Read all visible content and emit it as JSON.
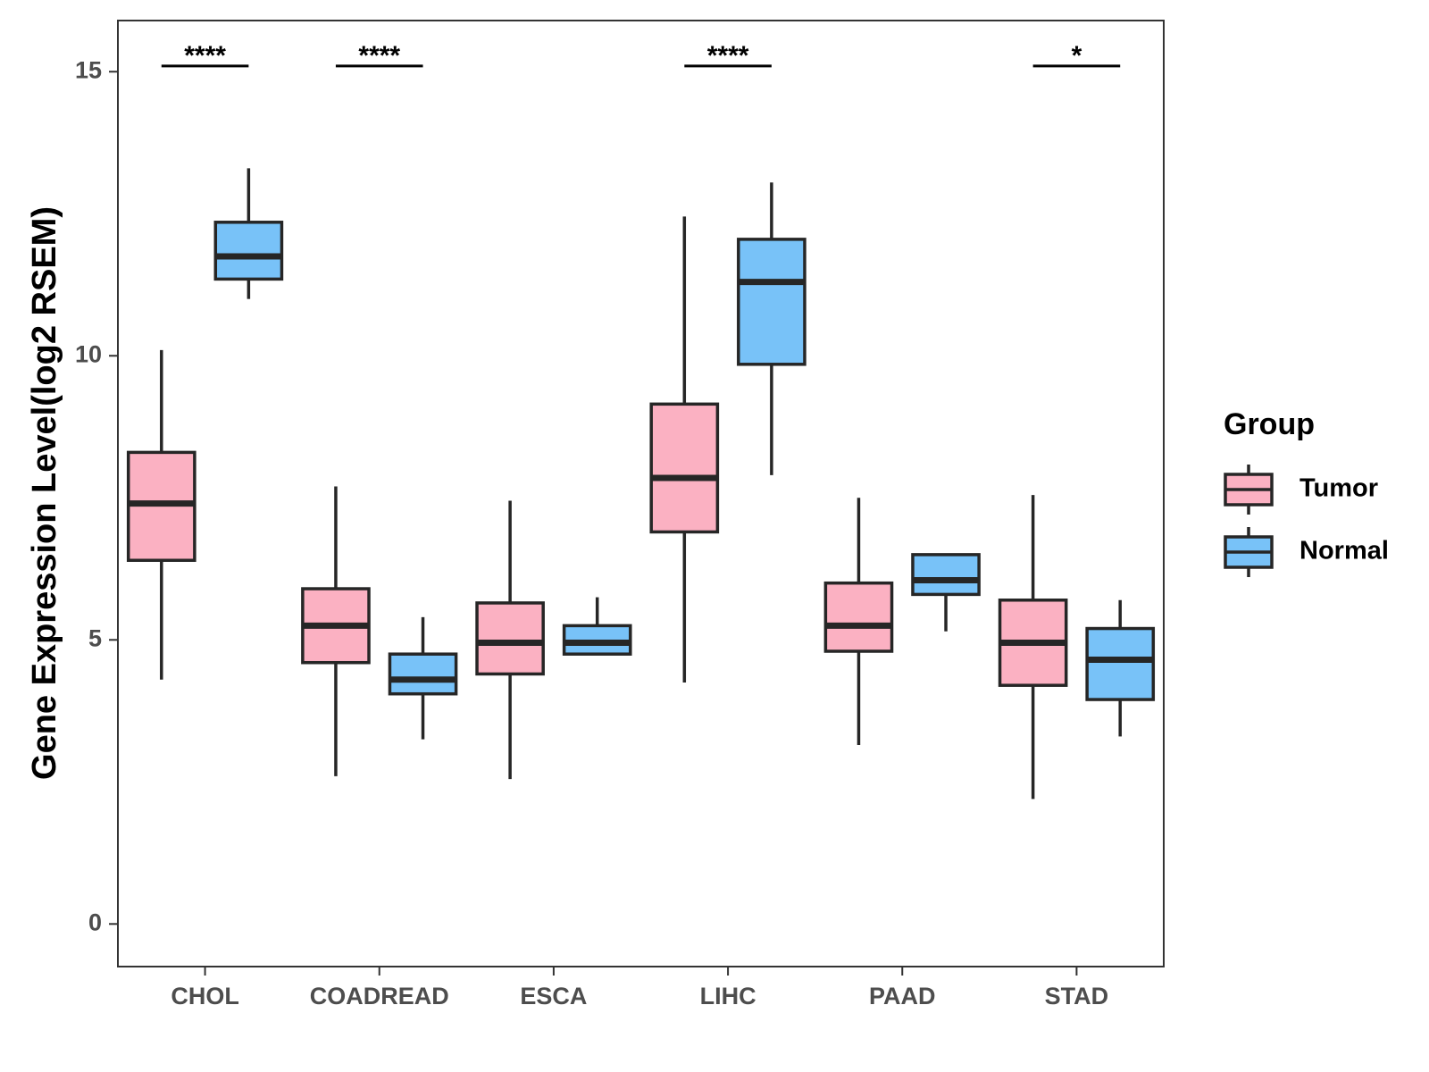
{
  "chart_data": {
    "type": "boxplot",
    "title": "",
    "xlabel": "",
    "ylabel": "Gene Expression Level(log2 RSEM)",
    "ylim": [
      -0.75,
      15.9
    ],
    "yticks": [
      0,
      5,
      10,
      15
    ],
    "ytick_labels": [
      "0",
      "5",
      "10",
      "15"
    ],
    "grid": false,
    "categories": [
      "CHOL",
      "COADREAD",
      "ESCA",
      "LIHC",
      "PAAD",
      "STAD"
    ],
    "legend": {
      "title": "Group",
      "position": "right",
      "entries": [
        "Tumor",
        "Normal"
      ]
    },
    "series": [
      {
        "name": "Tumor",
        "color": "#FBB1C2",
        "boxes": [
          {
            "min": 4.3,
            "q1": 6.4,
            "median": 7.4,
            "q3": 8.3,
            "max": 10.1
          },
          {
            "min": 2.6,
            "q1": 4.6,
            "median": 5.25,
            "q3": 5.9,
            "max": 7.7
          },
          {
            "min": 2.55,
            "q1": 4.4,
            "median": 4.95,
            "q3": 5.65,
            "max": 7.45
          },
          {
            "min": 4.25,
            "q1": 6.9,
            "median": 7.85,
            "q3": 9.15,
            "max": 12.45
          },
          {
            "min": 3.15,
            "q1": 4.8,
            "median": 5.25,
            "q3": 6.0,
            "max": 7.5
          },
          {
            "min": 2.2,
            "q1": 4.2,
            "median": 4.95,
            "q3": 5.7,
            "max": 7.55
          }
        ]
      },
      {
        "name": "Normal",
        "color": "#78C2F8",
        "boxes": [
          {
            "min": 11.0,
            "q1": 11.35,
            "median": 11.75,
            "q3": 12.35,
            "max": 13.3
          },
          {
            "min": 3.25,
            "q1": 4.05,
            "median": 4.3,
            "q3": 4.75,
            "max": 5.4
          },
          {
            "min": 4.75,
            "q1": 4.75,
            "median": 4.95,
            "q3": 5.25,
            "max": 5.75
          },
          {
            "min": 7.9,
            "q1": 9.85,
            "median": 11.3,
            "q3": 12.05,
            "max": 13.05
          },
          {
            "min": 5.15,
            "q1": 5.8,
            "median": 6.05,
            "q3": 6.5,
            "max": 6.5
          },
          {
            "min": 3.3,
            "q1": 3.95,
            "median": 4.65,
            "q3": 5.2,
            "max": 5.7
          }
        ]
      }
    ],
    "significance": [
      {
        "category": "CHOL",
        "label": "****"
      },
      {
        "category": "COADREAD",
        "label": "****"
      },
      {
        "category": "LIHC",
        "label": "****"
      },
      {
        "category": "STAD",
        "label": "*"
      }
    ],
    "significance_y": 15.1
  }
}
